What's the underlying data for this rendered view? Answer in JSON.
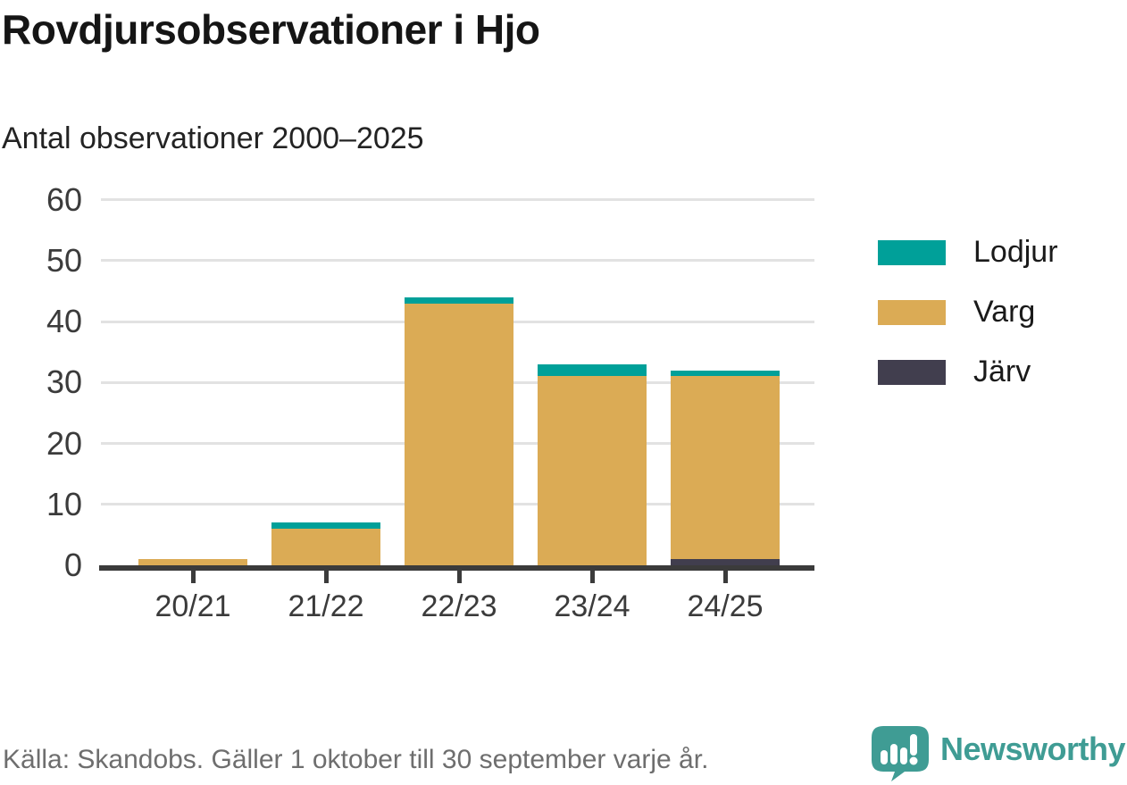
{
  "chart_data": {
    "type": "bar",
    "stacked": true,
    "title": "Rovdjursobservationer i Hjo",
    "subtitle": "Antal observationer 2000–2025",
    "categories": [
      "20/21",
      "21/22",
      "22/23",
      "23/24",
      "24/25"
    ],
    "series": [
      {
        "name": "Lodjur",
        "color": "#00a099",
        "values": [
          0,
          1,
          1,
          2,
          1
        ]
      },
      {
        "name": "Varg",
        "color": "#dbab55",
        "values": [
          1,
          6,
          43,
          31,
          30
        ]
      },
      {
        "name": "Järv",
        "color": "#413e4e",
        "values": [
          0,
          0,
          0,
          0,
          1
        ]
      }
    ],
    "stack_order_bottom_to_top": [
      "Järv",
      "Varg",
      "Lodjur"
    ],
    "totals": [
      1,
      7,
      44,
      33,
      32
    ],
    "ylim": [
      0,
      60
    ],
    "yticks": [
      0,
      10,
      20,
      30,
      40,
      50,
      60
    ],
    "grid": true,
    "legend_position": "right",
    "xlabel": "",
    "ylabel": ""
  },
  "colors": {
    "lodjur_teal": "#00a099",
    "varg_gold": "#dbab55",
    "jarv_dark": "#413e4e",
    "axis": "#3b3b3b",
    "grid": "#e2e2e2",
    "title_text": "#151515",
    "tick_text": "#3b3b3b",
    "source_text": "#6e6e6e",
    "brand_teal": "#3f9c94"
  },
  "footer": {
    "source_text": "Källa: Skandobs. Gäller 1 oktober till 30 september varje år.",
    "brand": "Newsworthy"
  }
}
